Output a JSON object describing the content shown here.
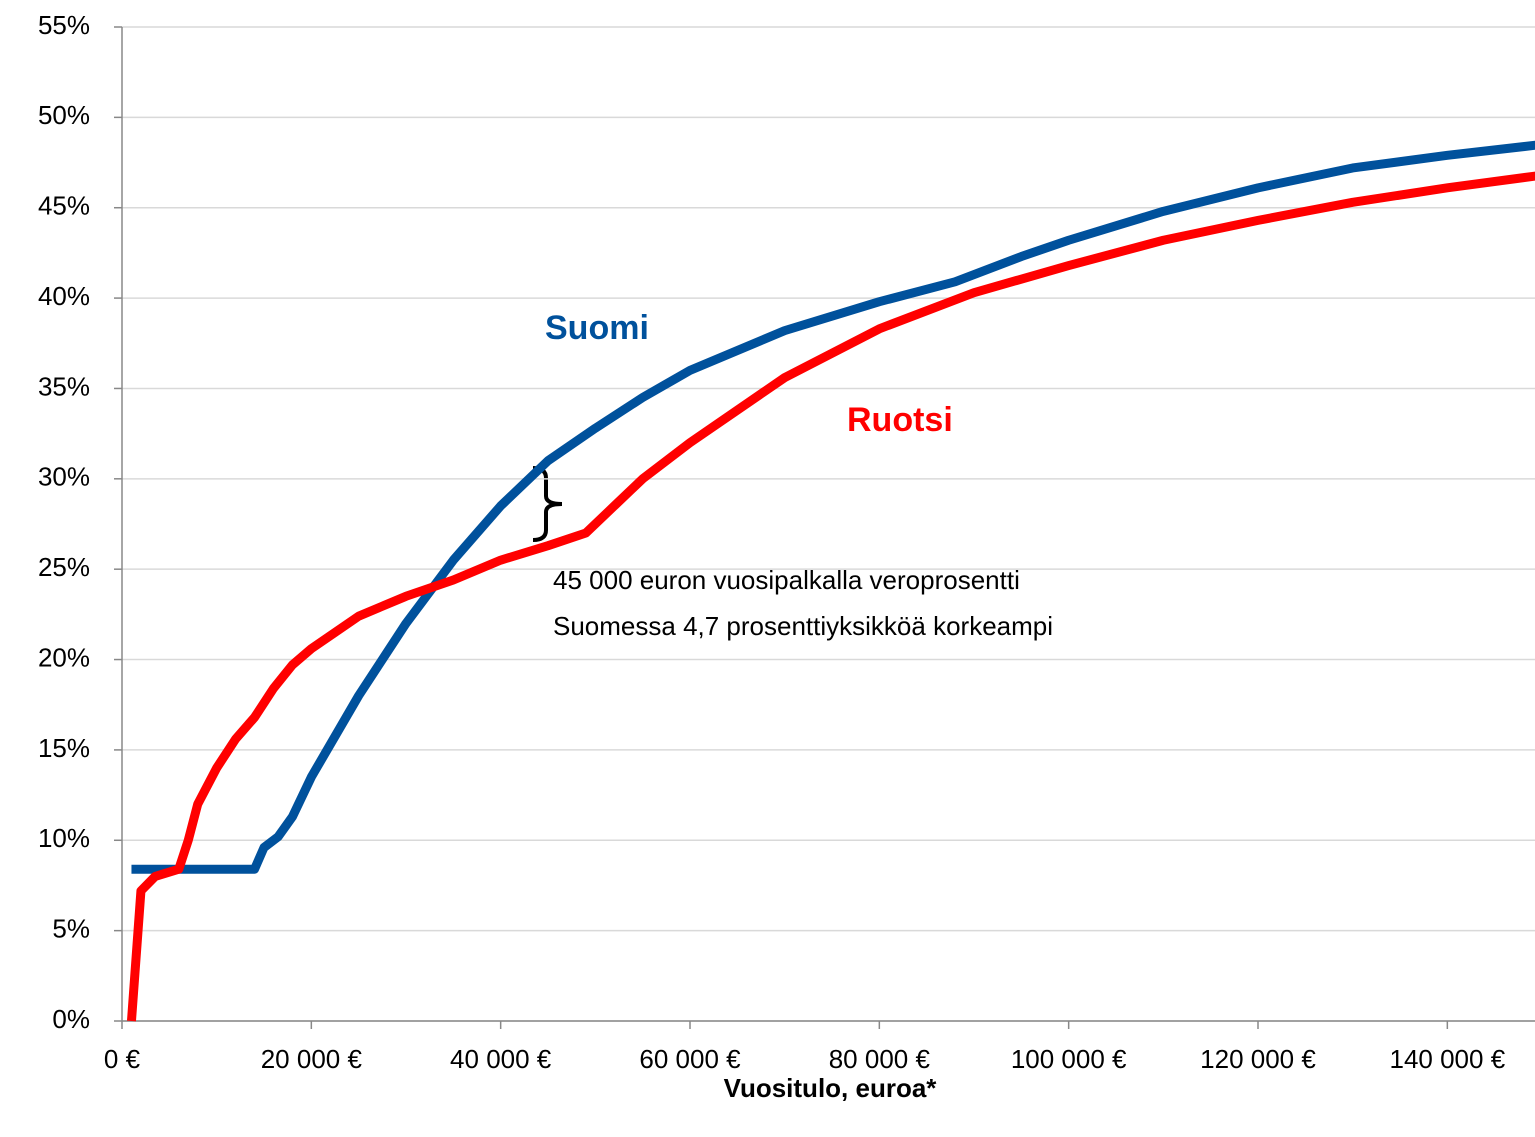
{
  "chart_data": {
    "type": "line",
    "x_label": "Vuositulo, euroa*",
    "xlim": [
      0,
      150000
    ],
    "xticks": [
      {
        "value": 0,
        "label": "0 €"
      },
      {
        "value": 20000,
        "label": "20 000 €"
      },
      {
        "value": 40000,
        "label": "40 000 €"
      },
      {
        "value": 60000,
        "label": "60 000 €"
      },
      {
        "value": 80000,
        "label": "80 000 €"
      },
      {
        "value": 100000,
        "label": "100 000 €"
      },
      {
        "value": 120000,
        "label": "120 000 €"
      },
      {
        "value": 140000,
        "label": "140 000 €"
      }
    ],
    "ylim": [
      0,
      55
    ],
    "yticks": [
      {
        "value": 0,
        "label": "0%"
      },
      {
        "value": 5,
        "label": "5%"
      },
      {
        "value": 10,
        "label": "10%"
      },
      {
        "value": 15,
        "label": "15%"
      },
      {
        "value": 20,
        "label": "20%"
      },
      {
        "value": 25,
        "label": "25%"
      },
      {
        "value": 30,
        "label": "30%"
      },
      {
        "value": 35,
        "label": "35%"
      },
      {
        "value": 40,
        "label": "40%"
      },
      {
        "value": 45,
        "label": "45%"
      },
      {
        "value": 50,
        "label": "50%"
      },
      {
        "value": 55,
        "label": "55%"
      }
    ],
    "grid": true,
    "series": [
      {
        "name": "Suomi",
        "color": "#00519c",
        "x": [
          1000,
          14000,
          15000,
          16500,
          18000,
          20000,
          25000,
          30000,
          35000,
          40000,
          45000,
          50000,
          55000,
          60000,
          70000,
          80000,
          88000,
          95000,
          100000,
          110000,
          120000,
          130000,
          140000,
          150000
        ],
        "values": [
          8.4,
          8.4,
          9.6,
          10.2,
          11.3,
          13.5,
          18,
          22,
          25.5,
          28.5,
          31,
          32.8,
          34.5,
          36,
          38.2,
          39.8,
          40.9,
          42.3,
          43.2,
          44.8,
          46.1,
          47.2,
          47.9,
          48.5
        ]
      },
      {
        "name": "Ruotsi",
        "color": "#ff0000",
        "x": [
          1000,
          2000,
          3500,
          6000,
          7000,
          8000,
          10000,
          12000,
          14000,
          16000,
          18000,
          20000,
          25000,
          30000,
          35000,
          40000,
          45000,
          49000,
          52000,
          55000,
          60000,
          70000,
          80000,
          90000,
          100000,
          110000,
          120000,
          130000,
          140000,
          150000
        ],
        "values": [
          0,
          7.2,
          8,
          8.4,
          10,
          12,
          14,
          15.6,
          16.8,
          18.4,
          19.7,
          20.6,
          22.4,
          23.5,
          24.4,
          25.5,
          26.3,
          27,
          28.5,
          30,
          32,
          35.6,
          38.3,
          40.3,
          41.8,
          43.2,
          44.3,
          45.3,
          46.1,
          46.8
        ]
      }
    ],
    "annotations": [
      "45 000 euron vuosipalkalla veroprosentti",
      "Suomessa 4,7 prosenttiyksikköä korkeampi"
    ]
  }
}
